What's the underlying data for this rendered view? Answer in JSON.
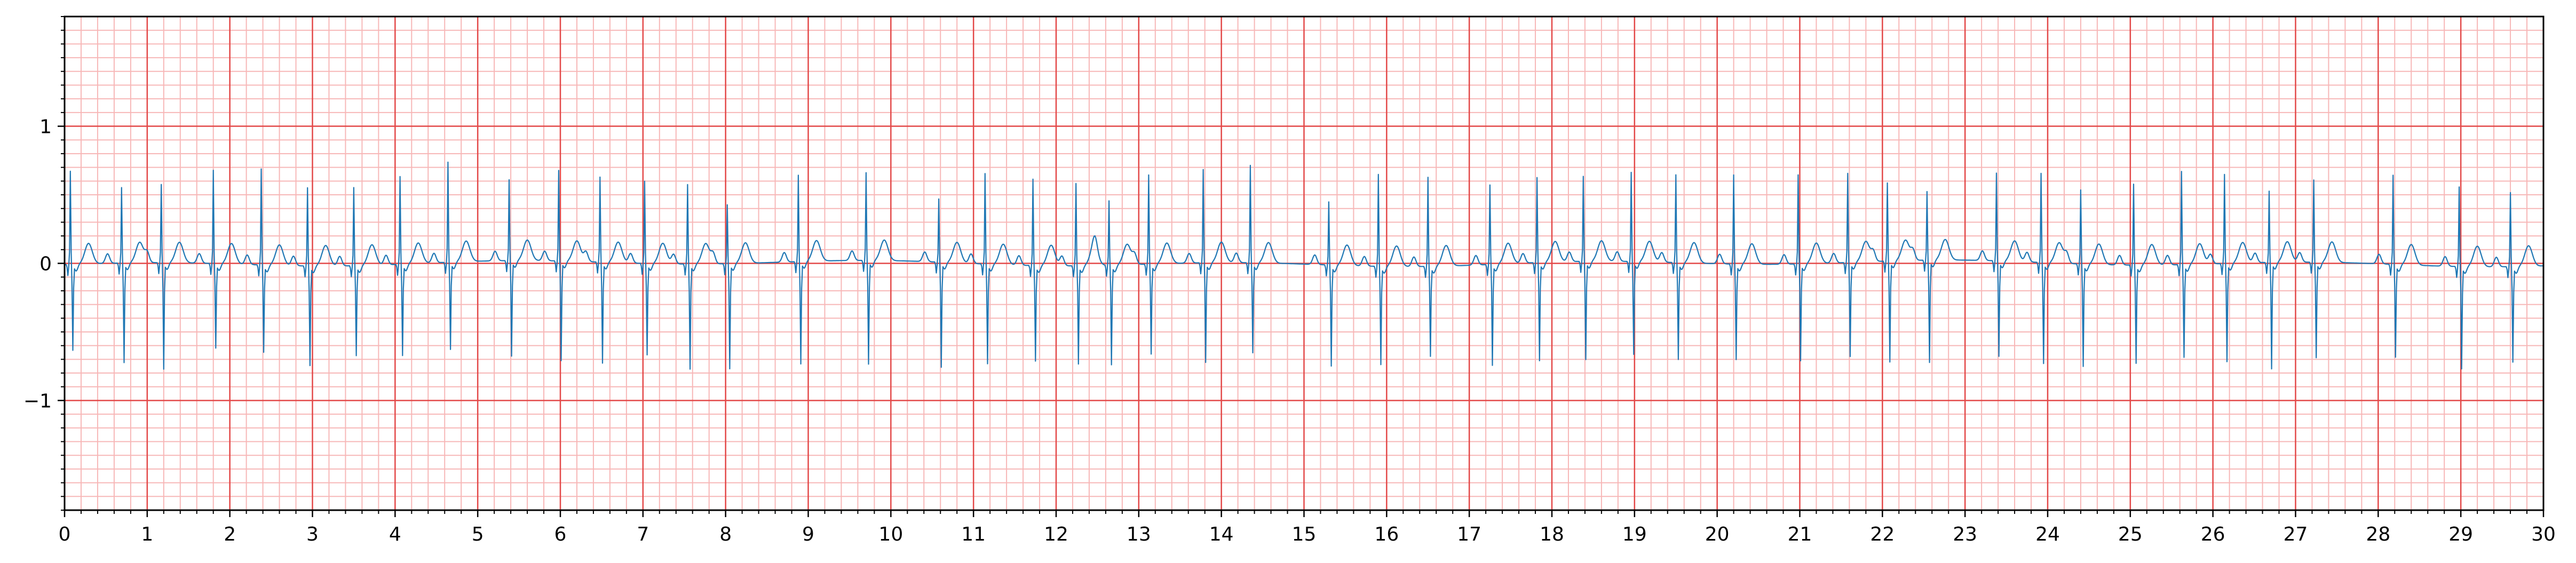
{
  "chart_data": {
    "type": "line",
    "title": "",
    "xlabel": "",
    "ylabel": "",
    "xlim": [
      0,
      30
    ],
    "ylim": [
      -1.8,
      1.8
    ],
    "x_ticks": [
      0,
      1,
      2,
      3,
      4,
      5,
      6,
      7,
      8,
      9,
      10,
      11,
      12,
      13,
      14,
      15,
      16,
      17,
      18,
      19,
      20,
      21,
      22,
      23,
      24,
      25,
      26,
      27,
      28,
      29,
      30
    ],
    "x_tick_labels": [
      "0",
      "1",
      "2",
      "3",
      "4",
      "5",
      "6",
      "7",
      "8",
      "9",
      "10",
      "11",
      "12",
      "13",
      "14",
      "15",
      "16",
      "17",
      "18",
      "19",
      "20",
      "21",
      "22",
      "23",
      "24",
      "25",
      "26",
      "27",
      "28",
      "29",
      "30"
    ],
    "y_ticks": [
      -1,
      0,
      1
    ],
    "y_tick_labels": [
      "−1",
      "0",
      "1"
    ],
    "grid": {
      "major_x_step": 1,
      "major_y_step": 1,
      "minor_x_step": 0.2,
      "minor_y_step": 0.1,
      "major_color": "#e34848",
      "minor_color": "#f7b7b7"
    },
    "colors": {
      "signal": "#1f77b4",
      "axes": "#000000",
      "background": "#ffffff"
    },
    "series": [
      {
        "sampling_hz": 100,
        "beat_times": [
          0.07,
          0.69,
          1.17,
          1.8,
          2.38,
          2.94,
          3.5,
          4.06,
          4.64,
          5.38,
          5.98,
          6.48,
          7.02,
          7.54,
          8.02,
          8.88,
          9.7,
          10.58,
          11.14,
          11.72,
          12.24,
          12.64,
          13.12,
          13.78,
          14.35,
          15.3,
          15.9,
          16.5,
          17.25,
          17.82,
          18.38,
          18.96,
          19.5,
          20.2,
          20.98,
          21.58,
          22.06,
          22.54,
          23.38,
          23.92,
          24.4,
          25.04,
          25.62,
          26.14,
          26.68,
          27.22,
          28.18,
          28.98,
          29.6
        ],
        "r_amplitudes": [
          0.68,
          0.55,
          0.57,
          0.68,
          0.7,
          0.57,
          0.57,
          0.64,
          0.73,
          0.59,
          0.66,
          0.62,
          0.6,
          0.58,
          0.43,
          0.63,
          0.64,
          0.46,
          0.66,
          0.63,
          0.6,
          0.47,
          0.65,
          0.68,
          0.71,
          0.46,
          0.67,
          0.65,
          0.58,
          0.62,
          0.62,
          0.65,
          0.64,
          0.65,
          0.65,
          0.65,
          0.57,
          0.5,
          0.64,
          0.65,
          0.54,
          0.59,
          0.68,
          0.65,
          0.52,
          0.6,
          0.65,
          0.58,
          0.54
        ],
        "s_amplitudes": [
          -0.62,
          -0.72,
          -0.77,
          -0.61,
          -0.63,
          -0.72,
          -0.65,
          -0.66,
          -0.63,
          -0.69,
          -0.72,
          -0.73,
          -0.66,
          -0.76,
          -0.76,
          -0.74,
          -0.75,
          -0.76,
          -0.72,
          -0.69,
          -0.71,
          -0.72,
          -0.65,
          -0.72,
          -0.65,
          -0.73,
          -0.71,
          -0.65,
          -0.73,
          -0.71,
          -0.71,
          -0.67,
          -0.7,
          -0.69,
          -0.7,
          -0.68,
          -0.73,
          -0.74,
          -0.69,
          -0.73,
          -0.74,
          -0.71,
          -0.67,
          -0.71,
          -0.77,
          -0.69,
          -0.67,
          -0.74,
          -0.69
        ]
      }
    ]
  }
}
